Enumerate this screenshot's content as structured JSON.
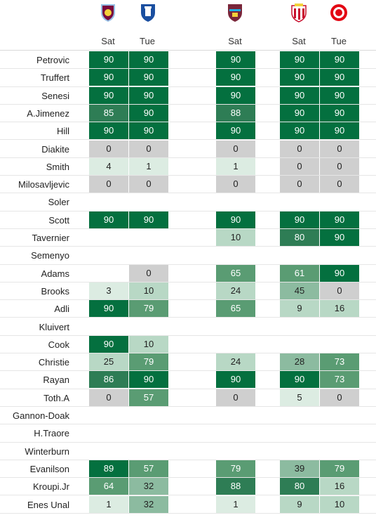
{
  "columns": [
    {
      "key": "c1",
      "day": "Sat",
      "crest": "aston-villa-crest"
    },
    {
      "key": "c2",
      "day": "Tue",
      "crest": "everton-crest"
    },
    {
      "key": "c3",
      "day": "Sat",
      "crest": "west-ham-crest"
    },
    {
      "key": "c4",
      "day": "Sat",
      "crest": "sunderland-crest"
    },
    {
      "key": "c5",
      "day": "Tue",
      "crest": "brentford-crest"
    }
  ],
  "players": [
    {
      "name": "Petrovic",
      "m": [
        "90",
        "90",
        "90",
        "90",
        "90"
      ]
    },
    {
      "name": "Truffert",
      "m": [
        "90",
        "90",
        "90",
        "90",
        "90"
      ]
    },
    {
      "name": "Senesi",
      "m": [
        "90",
        "90",
        "90",
        "90",
        "90"
      ]
    },
    {
      "name": "A.Jimenez",
      "m": [
        "85",
        "90",
        "88",
        "90",
        "90"
      ]
    },
    {
      "name": "Hill",
      "m": [
        "90",
        "90",
        "90",
        "90",
        "90"
      ]
    },
    {
      "name": "Diakite",
      "m": [
        "0",
        "0",
        "0",
        "0",
        "0"
      ]
    },
    {
      "name": "Smith",
      "m": [
        "4",
        "1",
        "1",
        "0",
        "0"
      ]
    },
    {
      "name": "Milosavljevic",
      "m": [
        "0",
        "0",
        "0",
        "0",
        "0"
      ]
    },
    {
      "name": "Soler",
      "m": [
        "",
        "",
        "",
        "",
        ""
      ]
    },
    {
      "name": "Scott",
      "m": [
        "90",
        "90",
        "90",
        "90",
        "90"
      ]
    },
    {
      "name": "Tavernier",
      "m": [
        "",
        "",
        "10",
        "80",
        "90"
      ]
    },
    {
      "name": "Semenyo",
      "m": [
        "",
        "",
        "",
        "",
        ""
      ]
    },
    {
      "name": "Adams",
      "m": [
        "",
        "0",
        "65",
        "61",
        "90"
      ]
    },
    {
      "name": "Brooks",
      "m": [
        "3",
        "10",
        "24",
        "45",
        "0"
      ]
    },
    {
      "name": "Adli",
      "m": [
        "90",
        "79",
        "65",
        "9",
        "16"
      ]
    },
    {
      "name": "Kluivert",
      "m": [
        "",
        "",
        "",
        "",
        ""
      ]
    },
    {
      "name": "Cook",
      "m": [
        "90",
        "10",
        "",
        "",
        ""
      ]
    },
    {
      "name": "Christie",
      "m": [
        "25",
        "79",
        "24",
        "28",
        "73"
      ]
    },
    {
      "name": "Rayan",
      "m": [
        "86",
        "90",
        "90",
        "90",
        "73"
      ]
    },
    {
      "name": "Toth.A",
      "m": [
        "0",
        "57",
        "0",
        "5",
        "0"
      ]
    },
    {
      "name": "Gannon-Doak",
      "m": [
        "",
        "",
        "",
        "",
        ""
      ]
    },
    {
      "name": "H.Traore",
      "m": [
        "",
        "",
        "",
        "",
        ""
      ]
    },
    {
      "name": "Winterburn",
      "m": [
        "",
        "",
        "",
        "",
        ""
      ]
    },
    {
      "name": "Evanilson",
      "m": [
        "89",
        "57",
        "79",
        "39",
        "79"
      ]
    },
    {
      "name": "Kroupi.Jr",
      "m": [
        "64",
        "32",
        "88",
        "80",
        "16"
      ]
    },
    {
      "name": "Enes Unal",
      "m": [
        "1",
        "32",
        "1",
        "9",
        "10"
      ]
    }
  ],
  "colors": {
    "full": "#04703f",
    "zero": "#cfcfcf"
  }
}
